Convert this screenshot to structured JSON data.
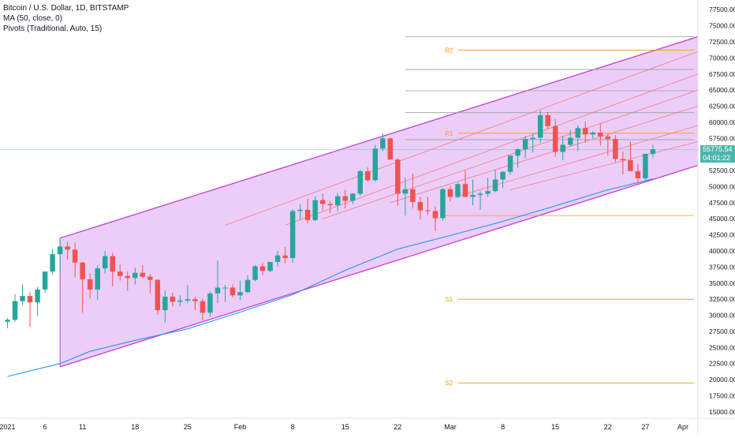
{
  "legend": {
    "symbol": "Bitcoin / U.S. Dollar, 1D, BITSTAMP",
    "ma": "MA (50, close, 0)",
    "pivots": "Pivots (Traditional, Auto, 15)"
  },
  "last_price": {
    "value": "55775.54",
    "countdown": "04:01:22"
  },
  "colors": {
    "up": "#26a69a",
    "down": "#ef5350",
    "channel_border": "#bf40d6",
    "channel_fill": "#e8c4f7",
    "channel_inner": "#f47a8a",
    "ma": "#2196f3",
    "pivot": "#ff9800",
    "gray_level": "#9e9e9e",
    "price_line": "#4db6ac"
  },
  "chart_data": {
    "type": "candlestick",
    "title": "Bitcoin / U.S. Dollar, 1D, BITSTAMP",
    "x_ticks": [
      "2021",
      "6",
      "11",
      "18",
      "25",
      "Feb",
      "8",
      "15",
      "22",
      "Mar",
      "8",
      "15",
      "22",
      "27",
      "Apr"
    ],
    "x_tick_days": [
      1,
      6,
      11,
      18,
      25,
      32,
      39,
      46,
      53,
      60,
      67,
      74,
      81,
      86,
      91
    ],
    "y_ticks": [
      "15000.00",
      "17500.00",
      "20000.00",
      "22500.00",
      "25000.00",
      "27500.00",
      "30000.00",
      "32500.00",
      "35000.00",
      "37500.00",
      "40000.00",
      "42500.00",
      "45000.00",
      "47500.00",
      "50000.00",
      "52500.00",
      "55000.00",
      "57500.00",
      "60000.00",
      "62500.00",
      "65000.00",
      "67500.00",
      "70000.00",
      "72500.00",
      "75000.00",
      "77500.00"
    ],
    "ylim": [
      14000,
      79000
    ],
    "xlim_days": [
      0,
      93
    ],
    "candles": [
      {
        "d": 1,
        "o": 29000,
        "h": 29600,
        "l": 28000,
        "c": 29300
      },
      {
        "d": 2,
        "o": 29300,
        "h": 33300,
        "l": 29000,
        "c": 32200
      },
      {
        "d": 3,
        "o": 32200,
        "h": 34800,
        "l": 31600,
        "c": 33000
      },
      {
        "d": 4,
        "o": 33000,
        "h": 33600,
        "l": 28200,
        "c": 32000
      },
      {
        "d": 5,
        "o": 32000,
        "h": 34400,
        "l": 29900,
        "c": 34000
      },
      {
        "d": 6,
        "o": 34000,
        "h": 36600,
        "l": 33500,
        "c": 36800
      },
      {
        "d": 7,
        "o": 36800,
        "h": 40300,
        "l": 36300,
        "c": 39500
      },
      {
        "d": 8,
        "o": 39500,
        "h": 41900,
        "l": 36600,
        "c": 40700
      },
      {
        "d": 9,
        "o": 40700,
        "h": 41400,
        "l": 38700,
        "c": 40200
      },
      {
        "d": 10,
        "o": 40200,
        "h": 41300,
        "l": 35900,
        "c": 38200
      },
      {
        "d": 11,
        "o": 38200,
        "h": 38300,
        "l": 30400,
        "c": 35600
      },
      {
        "d": 12,
        "o": 35600,
        "h": 36500,
        "l": 32600,
        "c": 34000
      },
      {
        "d": 13,
        "o": 34000,
        "h": 37800,
        "l": 32400,
        "c": 37300
      },
      {
        "d": 14,
        "o": 37300,
        "h": 40000,
        "l": 36500,
        "c": 39200
      },
      {
        "d": 15,
        "o": 39200,
        "h": 39700,
        "l": 34500,
        "c": 36800
      },
      {
        "d": 16,
        "o": 36800,
        "h": 37900,
        "l": 35400,
        "c": 36100
      },
      {
        "d": 17,
        "o": 36100,
        "h": 36800,
        "l": 33800,
        "c": 35800
      },
      {
        "d": 18,
        "o": 35800,
        "h": 37400,
        "l": 34800,
        "c": 36600
      },
      {
        "d": 19,
        "o": 36600,
        "h": 37800,
        "l": 35800,
        "c": 36000
      },
      {
        "d": 20,
        "o": 36000,
        "h": 36400,
        "l": 33400,
        "c": 35500
      },
      {
        "d": 21,
        "o": 35500,
        "h": 35600,
        "l": 30100,
        "c": 30800
      },
      {
        "d": 22,
        "o": 30800,
        "h": 33800,
        "l": 28900,
        "c": 32900
      },
      {
        "d": 23,
        "o": 32900,
        "h": 33500,
        "l": 31400,
        "c": 32100
      },
      {
        "d": 24,
        "o": 32100,
        "h": 33100,
        "l": 31400,
        "c": 32300
      },
      {
        "d": 25,
        "o": 32300,
        "h": 34700,
        "l": 31900,
        "c": 32500
      },
      {
        "d": 26,
        "o": 32500,
        "h": 32900,
        "l": 30800,
        "c": 32200
      },
      {
        "d": 27,
        "o": 32200,
        "h": 32600,
        "l": 29200,
        "c": 30400
      },
      {
        "d": 28,
        "o": 30400,
        "h": 33700,
        "l": 29800,
        "c": 33400
      },
      {
        "d": 29,
        "o": 33400,
        "h": 38500,
        "l": 31900,
        "c": 34300
      },
      {
        "d": 30,
        "o": 34300,
        "h": 34700,
        "l": 32100,
        "c": 34300
      },
      {
        "d": 31,
        "o": 34300,
        "h": 34800,
        "l": 32800,
        "c": 33100
      },
      {
        "d": 32,
        "o": 33100,
        "h": 35400,
        "l": 32400,
        "c": 33600
      },
      {
        "d": 33,
        "o": 33600,
        "h": 36200,
        "l": 33500,
        "c": 35500
      },
      {
        "d": 34,
        "o": 35500,
        "h": 37800,
        "l": 35300,
        "c": 37600
      },
      {
        "d": 35,
        "o": 37600,
        "h": 38200,
        "l": 36200,
        "c": 36900
      },
      {
        "d": 36,
        "o": 36900,
        "h": 38000,
        "l": 36700,
        "c": 38300
      },
      {
        "d": 37,
        "o": 38300,
        "h": 40000,
        "l": 37600,
        "c": 39300
      },
      {
        "d": 38,
        "o": 39300,
        "h": 40600,
        "l": 38100,
        "c": 38900
      },
      {
        "d": 39,
        "o": 38900,
        "h": 46500,
        "l": 38200,
        "c": 46200
      },
      {
        "d": 40,
        "o": 46200,
        "h": 47300,
        "l": 44800,
        "c": 46400
      },
      {
        "d": 41,
        "o": 46400,
        "h": 48100,
        "l": 44300,
        "c": 44800
      },
      {
        "d": 42,
        "o": 44800,
        "h": 48500,
        "l": 44600,
        "c": 47900
      },
      {
        "d": 43,
        "o": 47900,
        "h": 48900,
        "l": 46300,
        "c": 47300
      },
      {
        "d": 44,
        "o": 47300,
        "h": 47800,
        "l": 45900,
        "c": 47100
      },
      {
        "d": 45,
        "o": 47100,
        "h": 49000,
        "l": 46200,
        "c": 48500
      },
      {
        "d": 46,
        "o": 48500,
        "h": 49500,
        "l": 46600,
        "c": 47800
      },
      {
        "d": 47,
        "o": 47800,
        "h": 49000,
        "l": 47300,
        "c": 48900
      },
      {
        "d": 48,
        "o": 48900,
        "h": 52600,
        "l": 48600,
        "c": 52400
      },
      {
        "d": 49,
        "o": 52400,
        "h": 53000,
        "l": 50800,
        "c": 51000
      },
      {
        "d": 50,
        "o": 51000,
        "h": 56500,
        "l": 50800,
        "c": 55900
      },
      {
        "d": 51,
        "o": 55900,
        "h": 58300,
        "l": 55500,
        "c": 57500
      },
      {
        "d": 52,
        "o": 57500,
        "h": 57600,
        "l": 54300,
        "c": 54200
      },
      {
        "d": 53,
        "o": 54200,
        "h": 54400,
        "l": 47000,
        "c": 48900
      },
      {
        "d": 54,
        "o": 48900,
        "h": 51400,
        "l": 45500,
        "c": 49600
      },
      {
        "d": 55,
        "o": 49600,
        "h": 52000,
        "l": 46600,
        "c": 47600
      },
      {
        "d": 56,
        "o": 47600,
        "h": 48400,
        "l": 44900,
        "c": 46300
      },
      {
        "d": 57,
        "o": 46300,
        "h": 48400,
        "l": 45600,
        "c": 46200
      },
      {
        "d": 58,
        "o": 46200,
        "h": 46900,
        "l": 43100,
        "c": 45100
      },
      {
        "d": 59,
        "o": 45100,
        "h": 49800,
        "l": 44700,
        "c": 49600
      },
      {
        "d": 60,
        "o": 49600,
        "h": 50200,
        "l": 47700,
        "c": 48400
      },
      {
        "d": 61,
        "o": 48400,
        "h": 50600,
        "l": 48200,
        "c": 50400
      },
      {
        "d": 62,
        "o": 50400,
        "h": 52500,
        "l": 48900,
        "c": 48400
      },
      {
        "d": 63,
        "o": 48400,
        "h": 51100,
        "l": 47100,
        "c": 48700
      },
      {
        "d": 64,
        "o": 48700,
        "h": 49300,
        "l": 46400,
        "c": 48900
      },
      {
        "d": 65,
        "o": 48900,
        "h": 51400,
        "l": 48400,
        "c": 49300
      },
      {
        "d": 66,
        "o": 49300,
        "h": 52600,
        "l": 49100,
        "c": 51100
      },
      {
        "d": 67,
        "o": 51100,
        "h": 52400,
        "l": 49800,
        "c": 52300
      },
      {
        "d": 68,
        "o": 52300,
        "h": 54900,
        "l": 51900,
        "c": 54800
      },
      {
        "d": 69,
        "o": 54800,
        "h": 56000,
        "l": 53000,
        "c": 55800
      },
      {
        "d": 70,
        "o": 55800,
        "h": 57900,
        "l": 54400,
        "c": 57400
      },
      {
        "d": 71,
        "o": 57400,
        "h": 58200,
        "l": 55300,
        "c": 57600
      },
      {
        "d": 72,
        "o": 57600,
        "h": 61800,
        "l": 56800,
        "c": 61100
      },
      {
        "d": 73,
        "o": 61100,
        "h": 61600,
        "l": 58900,
        "c": 59400
      },
      {
        "d": 74,
        "o": 59400,
        "h": 60500,
        "l": 54600,
        "c": 55400
      },
      {
        "d": 75,
        "o": 55400,
        "h": 57900,
        "l": 54100,
        "c": 56500
      },
      {
        "d": 76,
        "o": 56500,
        "h": 58800,
        "l": 56200,
        "c": 57600
      },
      {
        "d": 77,
        "o": 57600,
        "h": 59500,
        "l": 55500,
        "c": 59100
      },
      {
        "d": 78,
        "o": 59100,
        "h": 60100,
        "l": 56800,
        "c": 58100
      },
      {
        "d": 79,
        "o": 58100,
        "h": 58600,
        "l": 57500,
        "c": 58400
      },
      {
        "d": 80,
        "o": 58400,
        "h": 59800,
        "l": 56400,
        "c": 57800
      },
      {
        "d": 81,
        "o": 57800,
        "h": 58100,
        "l": 54800,
        "c": 57400
      },
      {
        "d": 82,
        "o": 57400,
        "h": 58000,
        "l": 53800,
        "c": 54300
      },
      {
        "d": 83,
        "o": 54300,
        "h": 55500,
        "l": 51900,
        "c": 54100
      },
      {
        "d": 84,
        "o": 54100,
        "h": 57000,
        "l": 52500,
        "c": 52400
      },
      {
        "d": 85,
        "o": 52400,
        "h": 53500,
        "l": 50500,
        "c": 51300
      },
      {
        "d": 86,
        "o": 51300,
        "h": 54800,
        "l": 51000,
        "c": 55100
      },
      {
        "d": 87,
        "o": 55100,
        "h": 56500,
        "l": 54500,
        "c": 55800
      }
    ],
    "channel": {
      "start_day": 8,
      "end_day": 93,
      "upper": [
        42000,
        73300
      ],
      "lower": [
        22000,
        53300
      ],
      "inner_lines": [
        {
          "start_day": 30,
          "p0": 44000,
          "p1": 71000
        },
        {
          "start_day": 38,
          "p0": 44000,
          "p1": 67500
        },
        {
          "start_day": 43,
          "p0": 45000,
          "p1": 65000
        },
        {
          "start_day": 52,
          "p0": 47500,
          "p1": 62500
        },
        {
          "start_day": 61,
          "p0": 48500,
          "p1": 59500
        },
        {
          "start_day": 68,
          "p0": 49500,
          "p1": 57000
        }
      ]
    },
    "ma50": [
      [
        1,
        20500
      ],
      [
        8,
        22500
      ],
      [
        12,
        24400
      ],
      [
        18,
        26100
      ],
      [
        25,
        27900
      ],
      [
        32,
        30500
      ],
      [
        39,
        33200
      ],
      [
        46,
        37000
      ],
      [
        53,
        40300
      ],
      [
        60,
        42400
      ],
      [
        67,
        44600
      ],
      [
        74,
        47000
      ],
      [
        81,
        49500
      ],
      [
        86,
        50900
      ],
      [
        87,
        51200
      ]
    ],
    "pivots": [
      {
        "label": "R2",
        "price": 71200
      },
      {
        "label": "R1",
        "price": 58300
      },
      {
        "label": "S1",
        "price": 32500
      },
      {
        "label": "S2",
        "price": 19500
      }
    ],
    "pivot_p_price": 45500,
    "gray_levels": [
      73300,
      68200,
      64900,
      61500,
      57300
    ],
    "last_price": 55775.54
  }
}
